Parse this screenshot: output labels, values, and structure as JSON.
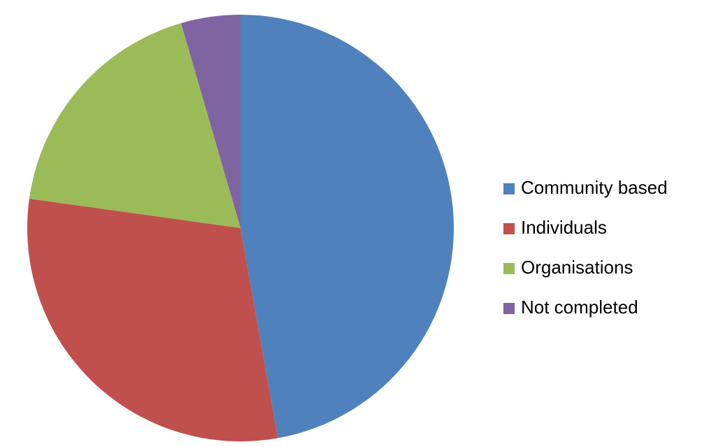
{
  "chart_data": {
    "type": "pie",
    "categories": [
      "Community based",
      "Individuals",
      "Organisations",
      "Not completed"
    ],
    "values": [
      47.2,
      30.0,
      18.3,
      4.5
    ],
    "colors": [
      "#4f81bd",
      "#c0504d",
      "#9bbb59",
      "#8064a2"
    ],
    "legend": "right"
  }
}
